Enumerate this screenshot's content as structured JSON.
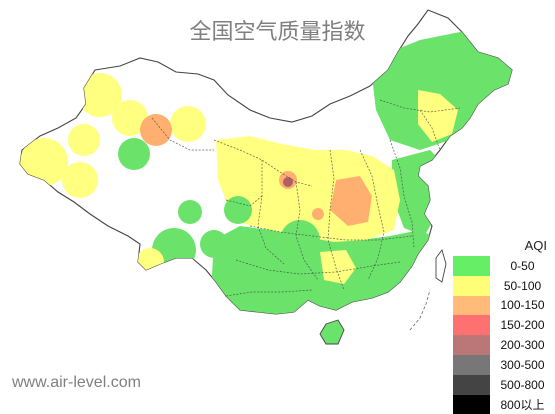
{
  "map": {
    "title": "全国空气质量指数",
    "source": "www.air-level.com"
  },
  "legend": {
    "title": "AQI",
    "items": [
      {
        "label": "0-50",
        "color": "#66ee66"
      },
      {
        "label": "50-100",
        "color": "#ffff77"
      },
      {
        "label": "100-150",
        "color": "#ffbb77"
      },
      {
        "label": "150-200",
        "color": "#ff7070"
      },
      {
        "label": "200-300",
        "color": "#bb7777"
      },
      {
        "label": "300-500",
        "color": "#777777"
      },
      {
        "label": "500-800",
        "color": "#444444"
      },
      {
        "label": "800以上",
        "color": "#000000"
      }
    ]
  },
  "colors": {
    "border": "#444444",
    "good": "#6be36b",
    "moderate": "#ffff80",
    "sensitive": "#ffb070",
    "unhealthy": "#ff6b6b",
    "very_unhealthy": "#b06060"
  }
}
